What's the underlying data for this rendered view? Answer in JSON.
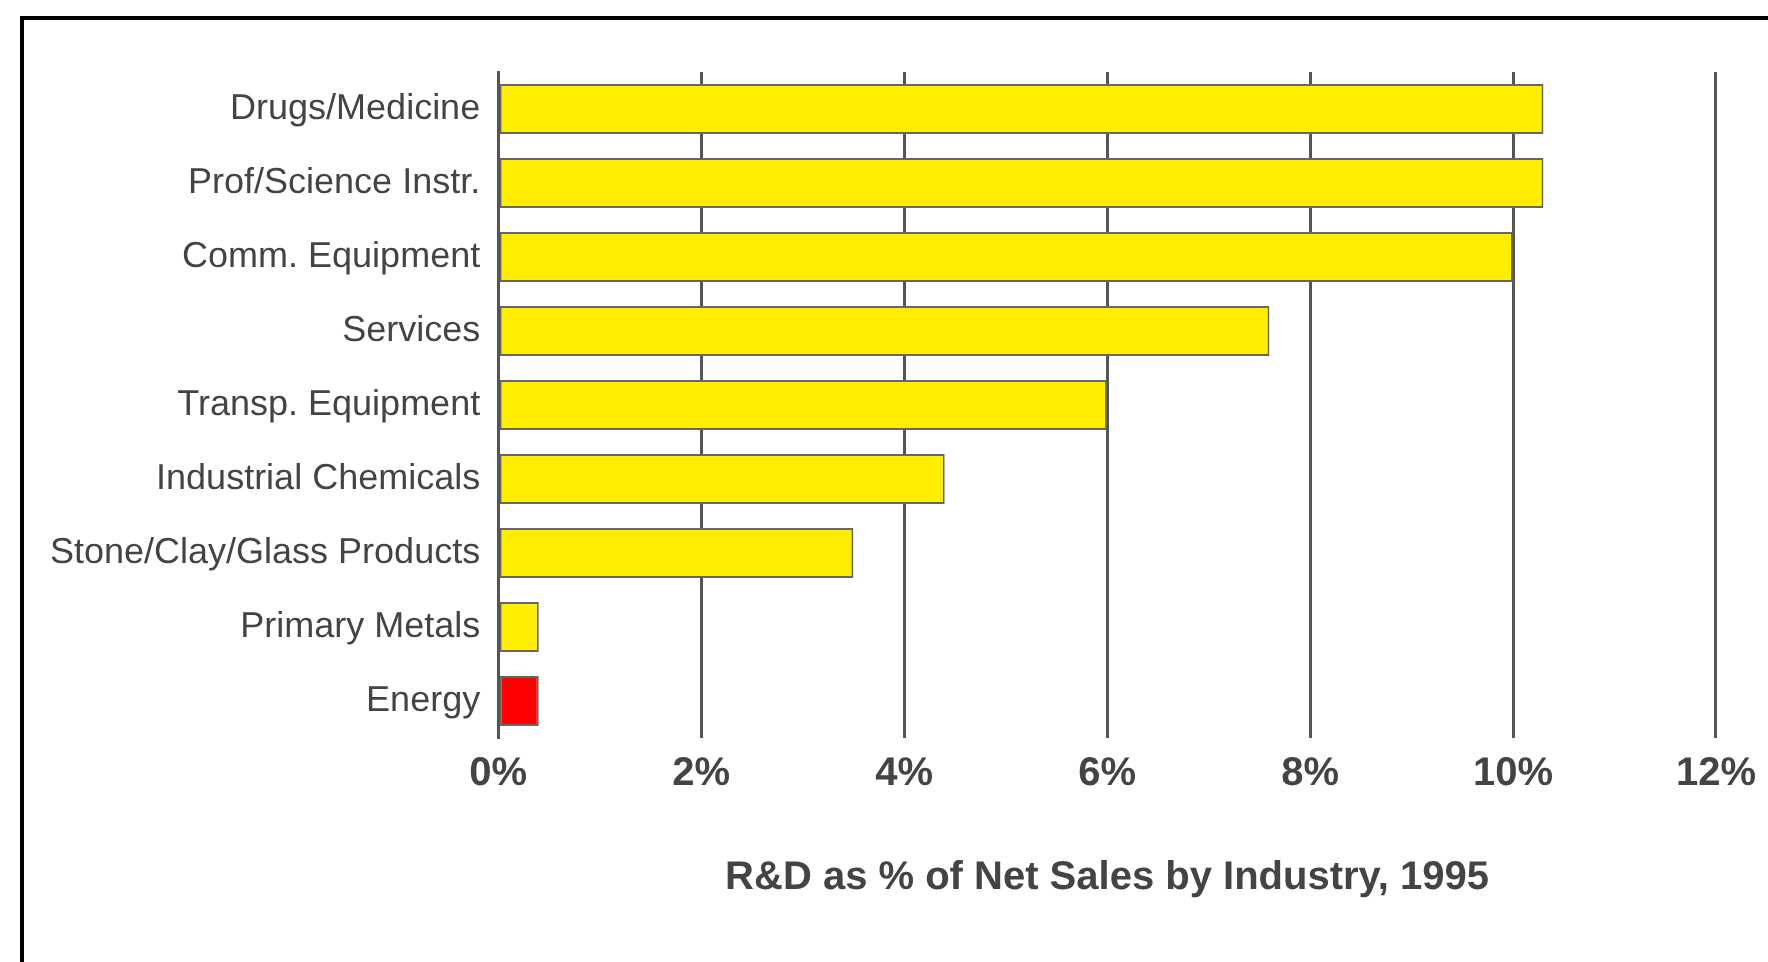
{
  "chart_data": {
    "type": "bar",
    "orientation": "horizontal",
    "xlabel": "R&D as % of Net Sales by Industry, 1995",
    "categories": [
      "Drugs/Medicine",
      "Prof/Science Instr.",
      "Comm. Equipment",
      "Services",
      "Transp. Equipment",
      "Industrial Chemicals",
      "Stone/Clay/Glass Products",
      "Primary Metals",
      "Energy"
    ],
    "values": [
      10.3,
      10.3,
      10.0,
      7.6,
      6.0,
      4.4,
      3.5,
      0.4,
      0.4
    ],
    "colors": [
      "#ffee00",
      "#ffee00",
      "#ffee00",
      "#ffee00",
      "#ffee00",
      "#ffee00",
      "#ffee00",
      "#ffee00",
      "#ff0000"
    ],
    "xlim": [
      0,
      12
    ],
    "xticks": [
      {
        "value": 0,
        "label": "0%"
      },
      {
        "value": 2,
        "label": "2%"
      },
      {
        "value": 4,
        "label": "4%"
      },
      {
        "value": 6,
        "label": "6%"
      },
      {
        "value": 8,
        "label": "8%"
      },
      {
        "value": 10,
        "label": "10%"
      },
      {
        "value": 12,
        "label": "12%"
      }
    ],
    "grid": "x",
    "legend": false
  }
}
